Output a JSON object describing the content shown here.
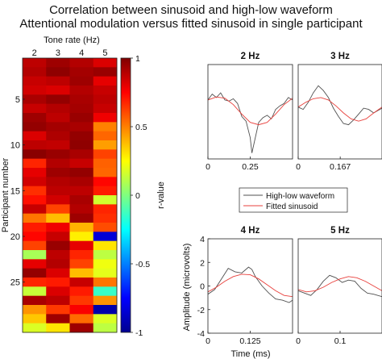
{
  "title": "Correlation between sinusoid and high-low waveform",
  "subtitle": "Attentional modulation versus fitted sinusoid in single participant",
  "chart_data": [
    {
      "type": "heatmap",
      "title": "",
      "xlabel": "Tone rate (Hz)",
      "ylabel": "Participant number",
      "x_categories": [
        "2",
        "3",
        "4",
        "5"
      ],
      "y_ticks": [
        "5",
        "10",
        "15",
        "20",
        "25"
      ],
      "n_participants": 30,
      "colorbar": {
        "label": "r-value",
        "range": [
          -1,
          1
        ],
        "ticks": [
          "1",
          "0.5",
          "0",
          "-0.5",
          "-1"
        ],
        "colormap": "jet"
      },
      "values": [
        [
          0.88,
          0.94,
          0.9,
          0.82
        ],
        [
          0.9,
          0.97,
          0.93,
          0.95
        ],
        [
          0.86,
          0.88,
          0.94,
          0.8
        ],
        [
          0.84,
          0.82,
          0.9,
          0.86
        ],
        [
          0.92,
          0.96,
          0.92,
          0.88
        ],
        [
          0.86,
          0.9,
          0.93,
          0.86
        ],
        [
          0.94,
          0.88,
          0.95,
          0.78
        ],
        [
          0.96,
          0.93,
          0.92,
          0.5
        ],
        [
          0.82,
          0.91,
          0.96,
          0.55
        ],
        [
          0.88,
          0.87,
          0.97,
          0.44
        ],
        [
          0.98,
          0.95,
          0.92,
          0.62
        ],
        [
          0.68,
          0.9,
          0.86,
          0.56
        ],
        [
          0.8,
          0.94,
          0.96,
          0.55
        ],
        [
          0.84,
          0.9,
          0.92,
          0.74
        ],
        [
          0.66,
          0.88,
          0.88,
          0.7
        ],
        [
          0.72,
          0.84,
          0.92,
          0.16
        ],
        [
          0.86,
          0.62,
          0.9,
          0.68
        ],
        [
          0.52,
          0.38,
          0.94,
          0.66
        ],
        [
          0.7,
          0.78,
          0.4,
          0.6
        ],
        [
          0.74,
          0.86,
          0.28,
          -0.84
        ],
        [
          0.62,
          0.95,
          0.8,
          0.3
        ],
        [
          0.08,
          0.88,
          0.68,
          0.12
        ],
        [
          0.8,
          0.9,
          0.62,
          0.22
        ],
        [
          0.96,
          0.82,
          0.38,
          0.2
        ],
        [
          0.68,
          0.7,
          0.86,
          0.52
        ],
        [
          0.14,
          0.82,
          0.7,
          -0.14
        ],
        [
          0.92,
          0.88,
          0.64,
          0.46
        ],
        [
          0.46,
          0.64,
          0.76,
          -0.94
        ],
        [
          0.36,
          0.94,
          0.54,
          0.18
        ],
        [
          0.18,
          0.3,
          0.94,
          0.12
        ]
      ]
    },
    {
      "type": "line",
      "panel_title": "2 Hz",
      "x_ticks": [
        "0",
        "0.25"
      ],
      "xlim": [
        0,
        0.5
      ],
      "series": [
        {
          "name": "High-low waveform",
          "color": "#505050",
          "x": [
            0,
            0.025,
            0.05,
            0.075,
            0.1,
            0.125,
            0.15,
            0.175,
            0.2,
            0.225,
            0.25,
            0.26,
            0.275,
            0.3,
            0.325,
            0.35,
            0.375,
            0.4,
            0.425,
            0.45,
            0.475,
            0.5
          ],
          "y": [
            1.0,
            1.5,
            1.2,
            1.6,
            1.0,
            0.9,
            1.1,
            0.7,
            -0.4,
            -0.8,
            -2.2,
            -3.5,
            -2.5,
            -0.9,
            -0.5,
            -0.3,
            -0.6,
            0.2,
            0.5,
            0.7,
            1.2,
            1.0
          ]
        },
        {
          "name": "Fitted sinusoid",
          "color": "#e8403c",
          "x": [
            0,
            0.05,
            0.1,
            0.15,
            0.2,
            0.25,
            0.3,
            0.35,
            0.4,
            0.45,
            0.5
          ],
          "y": [
            1.0,
            1.25,
            1.15,
            0.6,
            -0.2,
            -0.9,
            -1.1,
            -0.9,
            -0.2,
            0.6,
            1.15
          ]
        }
      ]
    },
    {
      "type": "line",
      "panel_title": "3 Hz",
      "x_ticks": [
        "0",
        "0.167"
      ],
      "xlim": [
        0,
        0.333
      ],
      "series": [
        {
          "name": "High-low waveform",
          "color": "#505050",
          "x": [
            0,
            0.02,
            0.04,
            0.06,
            0.08,
            0.1,
            0.12,
            0.14,
            0.16,
            0.18,
            0.2,
            0.22,
            0.24,
            0.26,
            0.28,
            0.3,
            0.333
          ],
          "y": [
            0.4,
            0.2,
            0.8,
            1.6,
            2.2,
            1.8,
            1.2,
            0.3,
            -0.4,
            -1.0,
            -1.1,
            -0.7,
            -0.2,
            0.3,
            0.2,
            -0.1,
            0.3
          ]
        },
        {
          "name": "Fitted sinusoid",
          "color": "#e8403c",
          "x": [
            0,
            0.03,
            0.06,
            0.09,
            0.12,
            0.15,
            0.18,
            0.21,
            0.24,
            0.27,
            0.3,
            0.333
          ],
          "y": [
            0.4,
            0.8,
            1.1,
            1.2,
            1.0,
            0.5,
            -0.1,
            -0.6,
            -0.8,
            -0.6,
            -0.1,
            0.4
          ]
        }
      ]
    },
    {
      "type": "line",
      "panel_title": "4 Hz",
      "x_ticks": [
        "0",
        "0.125"
      ],
      "xlabel": "Time (ms)",
      "ylabel": "Amplitude (microvolts)",
      "y_ticks": [
        "4",
        "2",
        "0",
        "-2",
        "-4"
      ],
      "ylim": [
        -4,
        4
      ],
      "xlim": [
        0,
        0.25
      ],
      "series": [
        {
          "name": "High-low waveform",
          "color": "#505050",
          "x": [
            0,
            0.02,
            0.04,
            0.06,
            0.08,
            0.1,
            0.12,
            0.13,
            0.14,
            0.16,
            0.18,
            0.2,
            0.22,
            0.24,
            0.25
          ],
          "y": [
            -0.7,
            -0.3,
            0.6,
            1.5,
            1.2,
            1.1,
            1.6,
            1.4,
            0.8,
            0.0,
            -0.6,
            -1.1,
            -1.2,
            -1.4,
            -1.2
          ]
        },
        {
          "name": "Fitted sinusoid",
          "color": "#e8403c",
          "x": [
            0,
            0.025,
            0.05,
            0.075,
            0.1,
            0.125,
            0.15,
            0.175,
            0.2,
            0.225,
            0.25
          ],
          "y": [
            -0.5,
            -0.1,
            0.4,
            0.8,
            1.0,
            0.95,
            0.6,
            0.1,
            -0.4,
            -0.8,
            -0.9
          ]
        }
      ]
    },
    {
      "type": "line",
      "panel_title": "5 Hz",
      "x_ticks": [
        "0",
        "0.1"
      ],
      "xlim": [
        0,
        0.2
      ],
      "series": [
        {
          "name": "High-low waveform",
          "color": "#505050",
          "x": [
            0,
            0.015,
            0.03,
            0.045,
            0.06,
            0.075,
            0.09,
            0.105,
            0.12,
            0.135,
            0.15,
            0.165,
            0.18,
            0.2
          ],
          "y": [
            -0.4,
            -0.6,
            -0.8,
            -0.3,
            0.4,
            0.9,
            0.7,
            0.3,
            0.5,
            0.4,
            -0.2,
            -0.6,
            -0.7,
            -0.9
          ]
        },
        {
          "name": "Fitted sinusoid",
          "color": "#e8403c",
          "x": [
            0,
            0.02,
            0.04,
            0.06,
            0.08,
            0.1,
            0.12,
            0.14,
            0.16,
            0.18,
            0.2
          ],
          "y": [
            -0.3,
            -0.5,
            -0.4,
            -0.1,
            0.3,
            0.6,
            0.8,
            0.7,
            0.4,
            0.0,
            -0.4
          ]
        }
      ]
    }
  ],
  "legend": [
    {
      "label": "High-low waveform",
      "color": "#505050"
    },
    {
      "label": "Fitted sinusoid",
      "color": "#e8403c"
    }
  ]
}
